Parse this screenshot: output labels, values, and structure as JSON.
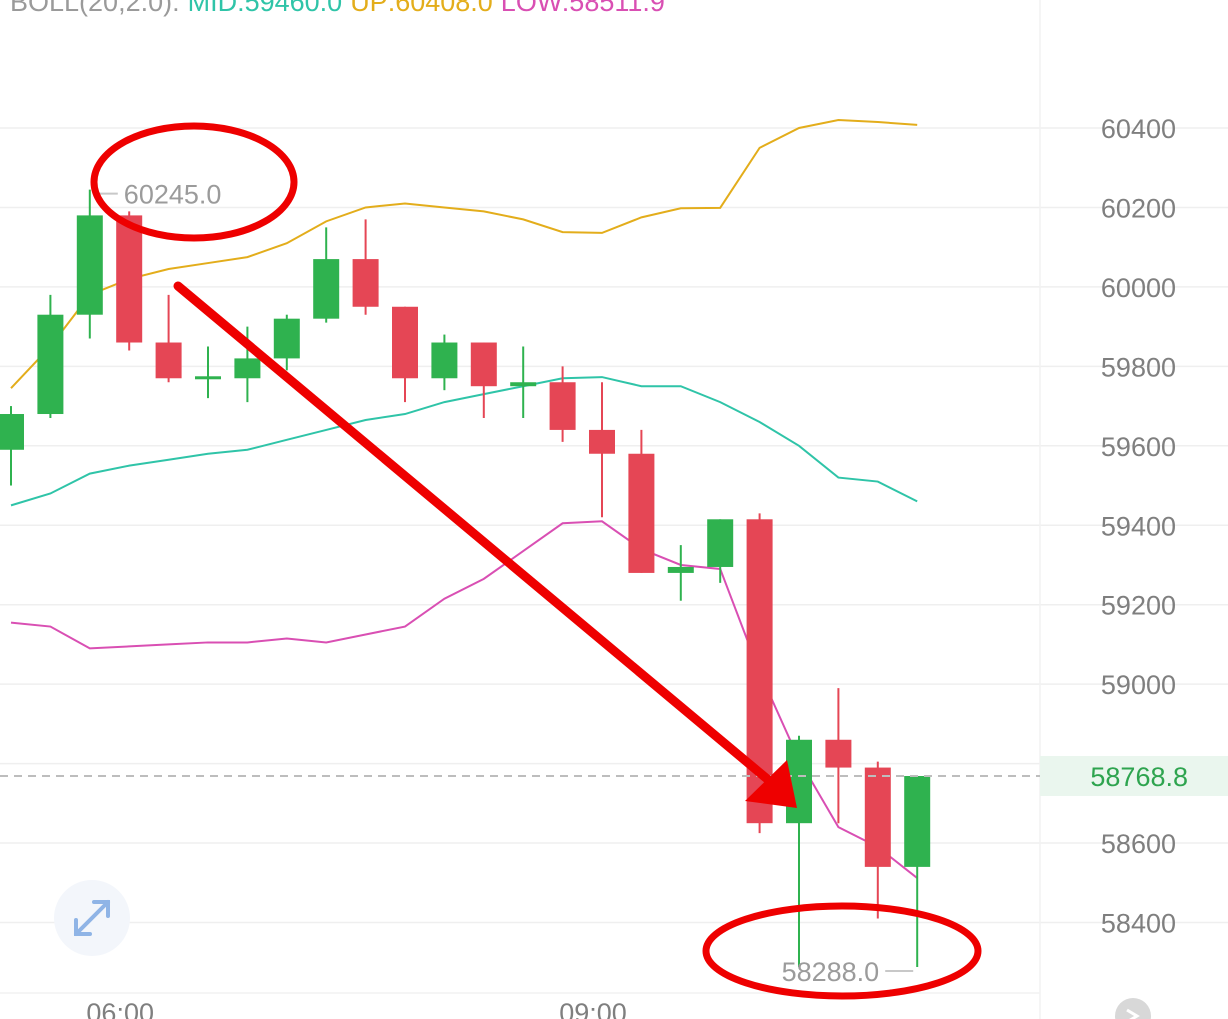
{
  "legend": {
    "label": "BOLL(20,2.0):",
    "mid": "MID:59460.0",
    "up": "UP:60408.0",
    "low": "LOW:58511.9"
  },
  "colors": {
    "up_candle": "#2fb24f",
    "down_candle": "#e54655",
    "mid_band": "#2fc4a8",
    "upper_band": "#e3ad1b",
    "lower_band": "#d94fb3",
    "annotation": "#ee0000",
    "grid": "#efefef"
  },
  "chart_data": {
    "type": "candlestick",
    "y_ticks": [
      60400,
      60200,
      60000,
      59800,
      59600,
      59400,
      59200,
      59000,
      58600,
      58400
    ],
    "x_labels": [
      "06:00",
      "09:00"
    ],
    "current_price": "58768.8",
    "high_label": "60245.0",
    "low_label": "58288.0",
    "candles": [
      {
        "open": 59590,
        "close": 59680,
        "high": 59700,
        "low": 59500
      },
      {
        "open": 59680,
        "close": 59930,
        "high": 59980,
        "low": 59670
      },
      {
        "open": 59930,
        "close": 60180,
        "high": 60245,
        "low": 59870
      },
      {
        "open": 60180,
        "close": 59860,
        "high": 60190,
        "low": 59840
      },
      {
        "open": 59860,
        "close": 59770,
        "high": 59980,
        "low": 59760
      },
      {
        "open": 59770,
        "close": 59775,
        "high": 59850,
        "low": 59720
      },
      {
        "open": 59770,
        "close": 59820,
        "high": 59900,
        "low": 59710
      },
      {
        "open": 59820,
        "close": 59920,
        "high": 59930,
        "low": 59790
      },
      {
        "open": 59920,
        "close": 60070,
        "high": 60150,
        "low": 59910
      },
      {
        "open": 60070,
        "close": 59950,
        "high": 60170,
        "low": 59930
      },
      {
        "open": 59950,
        "close": 59770,
        "high": 59950,
        "low": 59710
      },
      {
        "open": 59770,
        "close": 59860,
        "high": 59880,
        "low": 59740
      },
      {
        "open": 59860,
        "close": 59750,
        "high": 59860,
        "low": 59670
      },
      {
        "open": 59750,
        "close": 59760,
        "high": 59850,
        "low": 59670
      },
      {
        "open": 59760,
        "close": 59640,
        "high": 59800,
        "low": 59610
      },
      {
        "open": 59640,
        "close": 59580,
        "high": 59760,
        "low": 59420
      },
      {
        "open": 59580,
        "close": 59280,
        "high": 59640,
        "low": 59280
      },
      {
        "open": 59280,
        "close": 59295,
        "high": 59350,
        "low": 59210
      },
      {
        "open": 59295,
        "close": 59415,
        "high": 59415,
        "low": 59255
      },
      {
        "open": 59415,
        "close": 58650,
        "high": 59430,
        "low": 58625
      },
      {
        "open": 58650,
        "close": 58860,
        "high": 58870,
        "low": 58288
      },
      {
        "open": 58860,
        "close": 58790,
        "high": 58990,
        "low": 58650
      },
      {
        "open": 58790,
        "close": 58540,
        "high": 58805,
        "low": 58410
      },
      {
        "open": 58540,
        "close": 58768.8,
        "high": 58768.8,
        "low": 58288
      }
    ],
    "boll_upper": [
      59745,
      59850,
      59980,
      60020,
      60045,
      60060,
      60075,
      60110,
      60165,
      60200,
      60210,
      60200,
      60190,
      60170,
      60138,
      60136,
      60175,
      60198,
      60199,
      60350,
      60400,
      60420,
      60415,
      60408
    ],
    "boll_mid": [
      59450,
      59480,
      59530,
      59550,
      59565,
      59580,
      59590,
      59615,
      59640,
      59665,
      59680,
      59710,
      59730,
      59750,
      59770,
      59773,
      59750,
      59750,
      59710,
      59660,
      59600,
      59520,
      59510,
      59460
    ],
    "boll_lower": [
      59155,
      59145,
      59090,
      59095,
      59100,
      59105,
      59105,
      59115,
      59105,
      59125,
      59145,
      59215,
      59265,
      59335,
      59405,
      59410,
      59340,
      59300,
      59290,
      59030,
      58810,
      58640,
      58590,
      58511.9
    ]
  }
}
